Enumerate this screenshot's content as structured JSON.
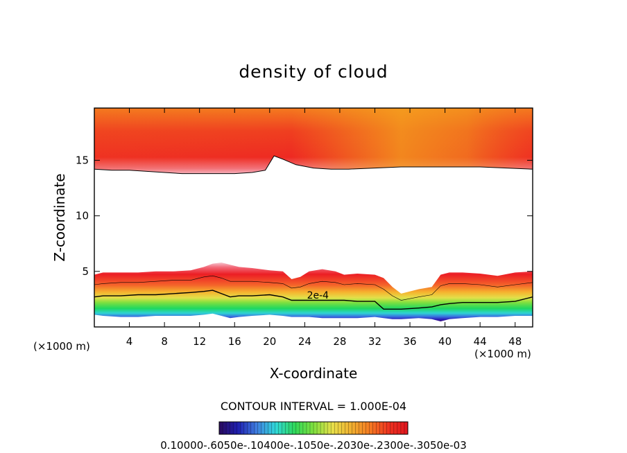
{
  "chart_data": {
    "type": "heatmap",
    "title": "density of cloud",
    "xlabel": "X-coordinate",
    "ylabel": "Z-coordinate",
    "x_unit_label": "(×1000 m)",
    "x_unit_label_right": "(×1000 m)",
    "xlim": [
      0,
      50
    ],
    "ylim": [
      0,
      19.7
    ],
    "x_ticks": [
      4,
      8,
      12,
      16,
      20,
      24,
      28,
      32,
      36,
      40,
      44,
      48
    ],
    "x_tick_labels": [
      "4",
      "8",
      "12",
      "16",
      "20",
      "24",
      "28",
      "32",
      "36",
      "40",
      "44",
      "48"
    ],
    "y_ticks": [
      5,
      10,
      15
    ],
    "y_tick_labels": [
      "5",
      "10",
      "15"
    ],
    "contour_interval_text": "CONTOUR INTERVAL = 1.000E-04",
    "contour_labels": [
      "2e-4"
    ],
    "colorbar": {
      "colors": [
        "#2a0a5e",
        "#1f1fb0",
        "#3f7fe0",
        "#2fd8d8",
        "#2fd85a",
        "#7fe03f",
        "#e8e04a",
        "#f0b030",
        "#f57a22",
        "#ee3320",
        "#e0141e"
      ],
      "labels_text": "0.10000-.6050e-.10400e-.1050e-.2030e-.2300e-.3050e-03"
    },
    "upper_cloud": {
      "x": [
        0,
        2,
        4,
        6,
        8,
        10,
        12,
        14,
        16,
        18,
        19.5,
        20.5,
        21.5,
        23,
        25,
        27,
        29,
        32,
        35,
        38,
        41,
        44,
        47,
        50
      ],
      "z_base": [
        14.2,
        14.1,
        14.1,
        14.0,
        13.9,
        13.8,
        13.8,
        13.8,
        13.8,
        13.9,
        14.1,
        15.4,
        15.1,
        14.6,
        14.3,
        14.2,
        14.2,
        14.3,
        14.4,
        14.4,
        14.4,
        14.4,
        14.3,
        14.2
      ],
      "z_top": 19.7
    },
    "lower_cloud": {
      "x": [
        0,
        1,
        3,
        5,
        7,
        9,
        11,
        12.5,
        13.5,
        14.5,
        15.5,
        16.5,
        18,
        20,
        21.5,
        22.5,
        23.5,
        24.5,
        26,
        27.5,
        28.5,
        30,
        32,
        33,
        34,
        35,
        37,
        38.5,
        39.5,
        40.5,
        42,
        44,
        46,
        48,
        50
      ],
      "z_top": [
        4.7,
        4.9,
        4.9,
        4.9,
        5.0,
        5.0,
        5.1,
        5.4,
        5.7,
        5.8,
        5.6,
        5.4,
        5.3,
        5.1,
        5.0,
        4.3,
        4.5,
        5.0,
        5.2,
        5.0,
        4.7,
        4.8,
        4.7,
        4.4,
        3.6,
        3.0,
        3.4,
        3.6,
        4.7,
        4.9,
        4.9,
        4.8,
        4.6,
        4.9,
        5.0
      ],
      "z_base": [
        1.1,
        1.0,
        0.9,
        0.9,
        1.0,
        1.0,
        1.0,
        1.1,
        1.2,
        1.0,
        0.8,
        0.9,
        1.0,
        1.1,
        1.0,
        0.9,
        0.9,
        0.9,
        0.8,
        0.8,
        0.8,
        0.8,
        0.9,
        0.8,
        0.7,
        0.7,
        0.8,
        0.7,
        0.5,
        0.7,
        0.8,
        0.9,
        0.9,
        1.0,
        1.0
      ],
      "contour_2e4": [
        2.7,
        2.8,
        2.8,
        2.9,
        2.9,
        3.0,
        3.1,
        3.2,
        3.3,
        3.0,
        2.7,
        2.8,
        2.8,
        2.9,
        2.7,
        2.4,
        2.4,
        2.4,
        2.4,
        2.4,
        2.4,
        2.3,
        2.3,
        1.6,
        1.6,
        1.6,
        1.7,
        1.8,
        2.0,
        2.1,
        2.2,
        2.2,
        2.2,
        2.3,
        2.7
      ],
      "contour_upper": [
        3.8,
        3.9,
        4.0,
        4.0,
        4.1,
        4.2,
        4.2,
        4.5,
        4.6,
        4.4,
        4.1,
        4.1,
        4.1,
        4.0,
        3.9,
        3.5,
        3.6,
        3.9,
        4.1,
        4.0,
        3.8,
        3.9,
        3.8,
        3.4,
        2.8,
        2.4,
        2.7,
        2.9,
        3.7,
        3.9,
        3.9,
        3.8,
        3.6,
        3.8,
        4.0
      ]
    }
  }
}
